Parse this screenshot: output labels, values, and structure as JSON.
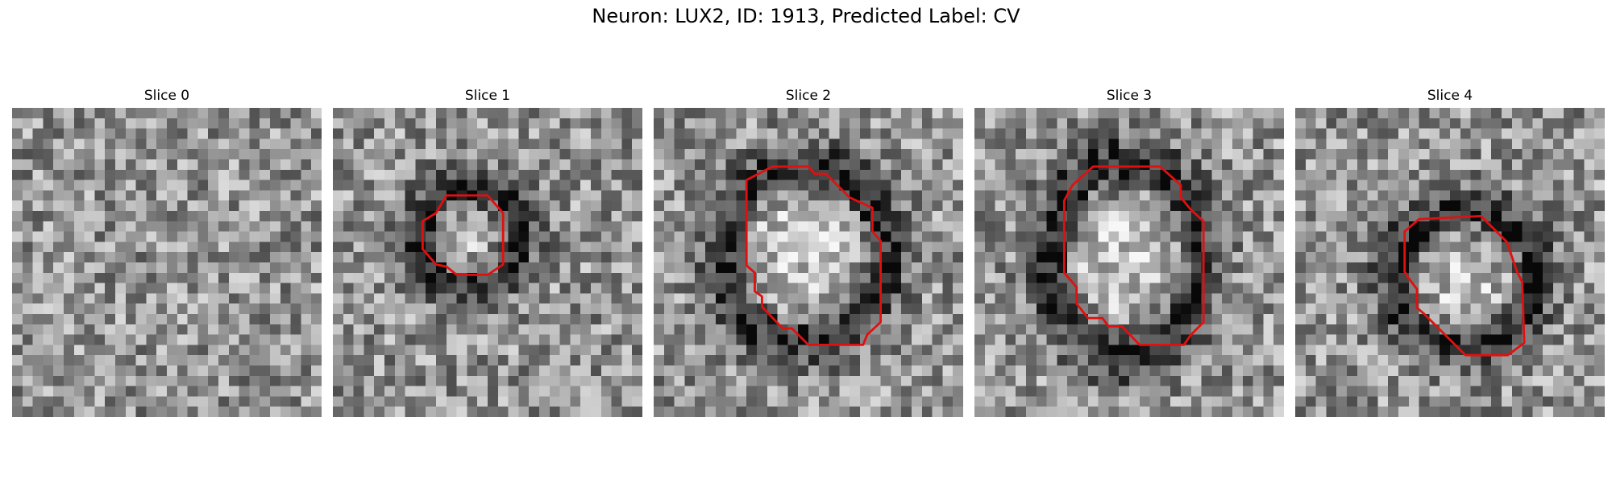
{
  "figure": {
    "title": "Neuron: LUX2, ID: 1913, Predicted Label: CV",
    "grid_size": 30,
    "contour_color": "#e01010"
  },
  "slices": [
    {
      "title": "Slice 0",
      "seed": 11,
      "blob": null,
      "contour": []
    },
    {
      "title": "Slice 1",
      "seed": 23,
      "blob": {
        "cx": 13.3,
        "cy": 12.5,
        "rx": 4.5,
        "ry": 4.5,
        "ring": 2.4
      },
      "contour": [
        [
          11,
          8.5
        ],
        [
          15,
          8.5
        ],
        [
          16.5,
          10.2
        ],
        [
          16.5,
          15.2
        ],
        [
          15,
          16.2
        ],
        [
          12,
          16.2
        ],
        [
          11,
          15.4
        ],
        [
          10,
          15.2
        ],
        [
          8.7,
          13.7
        ],
        [
          8.7,
          11
        ],
        [
          10,
          10.2
        ]
      ]
    },
    {
      "title": "Slice 2",
      "seed": 37,
      "blob": {
        "cx": 14.5,
        "cy": 14.2,
        "rx": 7.8,
        "ry": 8.3,
        "ring": 2.4
      },
      "contour": [
        [
          9,
          7
        ],
        [
          11.5,
          5.7
        ],
        [
          15,
          5.7
        ],
        [
          15.6,
          6.4
        ],
        [
          16.7,
          6.4
        ],
        [
          19,
          8.7
        ],
        [
          21.2,
          9.7
        ],
        [
          21.2,
          12
        ],
        [
          22,
          12.9
        ],
        [
          22,
          20.8
        ],
        [
          20.7,
          22
        ],
        [
          20.3,
          23
        ],
        [
          15,
          23
        ],
        [
          13.4,
          21.4
        ],
        [
          12.5,
          21.4
        ],
        [
          10.5,
          19.3
        ],
        [
          10.5,
          18.3
        ],
        [
          9.8,
          17.8
        ],
        [
          9.8,
          16
        ],
        [
          9,
          15.3
        ]
      ]
    },
    {
      "title": "Slice 3",
      "seed": 51,
      "blob": {
        "cx": 14.6,
        "cy": 14.6,
        "rx": 7.1,
        "ry": 9.1,
        "ring": 2.4
      },
      "contour": [
        [
          9.5,
          7.5
        ],
        [
          11.5,
          5.7
        ],
        [
          18,
          5.7
        ],
        [
          20,
          7.5
        ],
        [
          20,
          8.7
        ],
        [
          21,
          9.9
        ],
        [
          22.2,
          11
        ],
        [
          22.2,
          20.8
        ],
        [
          21,
          22
        ],
        [
          20.3,
          23
        ],
        [
          16,
          23
        ],
        [
          14.3,
          21.2
        ],
        [
          13,
          21.2
        ],
        [
          12.4,
          20.4
        ],
        [
          11,
          20.4
        ],
        [
          9.9,
          19
        ],
        [
          9.9,
          17.4
        ],
        [
          8.7,
          16
        ],
        [
          8.7,
          9
        ]
      ]
    },
    {
      "title": "Slice 4",
      "seed": 67,
      "blob": {
        "cx": 16.4,
        "cy": 16.6,
        "rx": 6.6,
        "ry": 6.4,
        "ring": 2.4
      },
      "contour": [
        [
          12,
          10.8
        ],
        [
          18,
          10.5
        ],
        [
          20.5,
          13
        ],
        [
          21.5,
          15.9
        ],
        [
          22,
          16.9
        ],
        [
          22.2,
          22.8
        ],
        [
          20.6,
          24
        ],
        [
          16.5,
          24
        ],
        [
          12.5,
          20
        ],
        [
          11.8,
          19.4
        ],
        [
          11.8,
          17.6
        ],
        [
          10.9,
          16.4
        ],
        [
          10.6,
          15.9
        ],
        [
          10.6,
          12
        ]
      ]
    }
  ]
}
